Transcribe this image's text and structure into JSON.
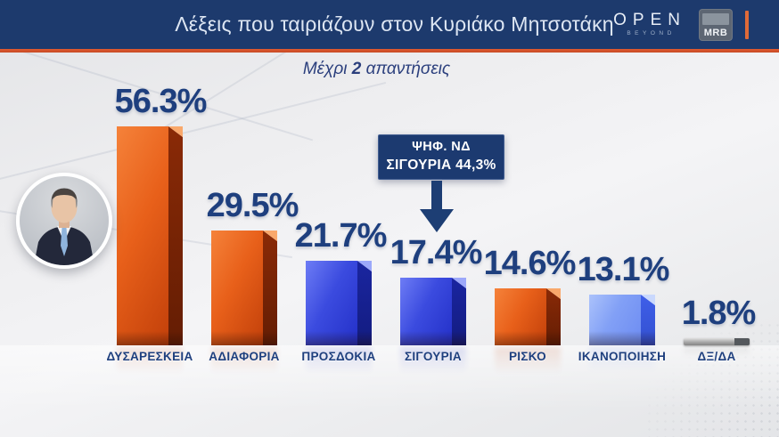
{
  "header": {
    "title": "Λέξεις που ταιριάζουν στον Κυριάκο Μητσοτάκη",
    "channel_logo": {
      "name": "OPEN",
      "tagline": "BEYOND"
    },
    "agency_logo": "MRB",
    "bg_color": "#1d3a6d",
    "accent_color": "#e05a30"
  },
  "subtitle": {
    "pre": "Μέχρι",
    "num": "2",
    "post": "απαντήσεις"
  },
  "callout": {
    "line1": "ΨΗΦ. ΝΔ",
    "line2": "ΣΙΓΟΥΡΙΑ 44,3%"
  },
  "chart_data": {
    "type": "bar",
    "title": "Λέξεις που ταιριάζουν στον Κυριάκο Μητσοτάκη",
    "subtitle": "Μέχρι 2 απαντήσεις",
    "categories": [
      "ΔΥΣΑΡΕΣΚΕΙΑ",
      "ΑΔΙΑΦΟΡΙΑ",
      "ΠΡΟΣΔΟΚΙΑ",
      "ΣΙΓΟΥΡΙΑ",
      "ΡΙΣΚΟ",
      "ΙΚΑΝΟΠΟΙΗΣΗ",
      "ΔΞ/ΔΑ"
    ],
    "values": [
      56.3,
      29.5,
      21.7,
      17.4,
      14.6,
      13.1,
      1.8
    ],
    "value_labels": [
      "56.3%",
      "29.5%",
      "21.7%",
      "17.4%",
      "14.6%",
      "13.1%",
      "1.8%"
    ],
    "bar_color_keys": [
      "orange",
      "orange",
      "blue",
      "blue",
      "orange",
      "lightblue",
      "gray"
    ],
    "annotation": {
      "target_category": "ΣΙΓΟΥΡΙΑ",
      "line1": "ΨΗΦ. ΝΔ",
      "line2": "ΣΙΓΟΥΡΙΑ 44,3%"
    },
    "ylim": [
      0,
      60
    ],
    "grid": false,
    "legend": false
  },
  "theme": {
    "label_color": "#1e3f7e",
    "bar_themes": {
      "orange": {
        "front_light": "#f5823a",
        "front_mid": "#e8601a",
        "front_dark": "#c2400a",
        "side": "#8a2a06",
        "side_dark": "#641d04",
        "top": "#f9a86b"
      },
      "blue": {
        "front_light": "#6d7cf5",
        "front_mid": "#3b4bdf",
        "front_dark": "#2330c8",
        "side": "#1a25a0",
        "side_dark": "#131c80",
        "top": "#9ca8fa"
      },
      "lightblue": {
        "front_light": "#abc2fb",
        "front_mid": "#82a0f6",
        "front_dark": "#6d8cf2",
        "side": "#3f5fe9",
        "side_dark": "#3350d0",
        "top": "#c9d8fd"
      },
      "gray": {
        "front_light": "#e0e0e0",
        "front_mid": "#a6a6a6",
        "front_dark": "#868686",
        "side": "#54585c",
        "side_dark": "#44484c",
        "top": "#ececec"
      }
    }
  }
}
